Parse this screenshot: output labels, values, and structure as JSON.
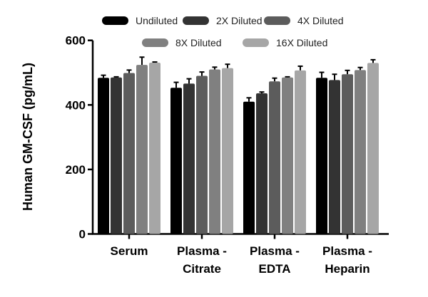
{
  "chart_data": {
    "type": "bar",
    "ylabel": "Human GM-CSF (pg/mL)",
    "xlabel": "",
    "ylim": [
      0,
      600
    ],
    "yticks": [
      0,
      200,
      400,
      600
    ],
    "categories": [
      [
        "Serum"
      ],
      [
        "Plasma -",
        "Citrate"
      ],
      [
        "Plasma -",
        "EDTA"
      ],
      [
        "Plasma -",
        "Heparin"
      ]
    ],
    "legend_position": "top",
    "grid": false,
    "series": [
      {
        "name": "Undiluted",
        "color": "#000000",
        "values": [
          484,
          453,
          410,
          484
        ],
        "errors": [
          8,
          17,
          12,
          17
        ]
      },
      {
        "name": "2X Diluted",
        "color": "#333333",
        "values": [
          485,
          466,
          436,
          477
        ],
        "errors": [
          2,
          15,
          4,
          18
        ]
      },
      {
        "name": "4X Diluted",
        "color": "#5c5c5c",
        "values": [
          499,
          490,
          473,
          495
        ],
        "errors": [
          9,
          12,
          10,
          12
        ]
      },
      {
        "name": "8X Diluted",
        "color": "#808080",
        "values": [
          524,
          510,
          485,
          508
        ],
        "errors": [
          24,
          7,
          2,
          8
        ]
      },
      {
        "name": "16X Diluted",
        "color": "#a6a6a6",
        "values": [
          531,
          514,
          507,
          530
        ],
        "errors": [
          2,
          12,
          13,
          10
        ]
      }
    ]
  }
}
